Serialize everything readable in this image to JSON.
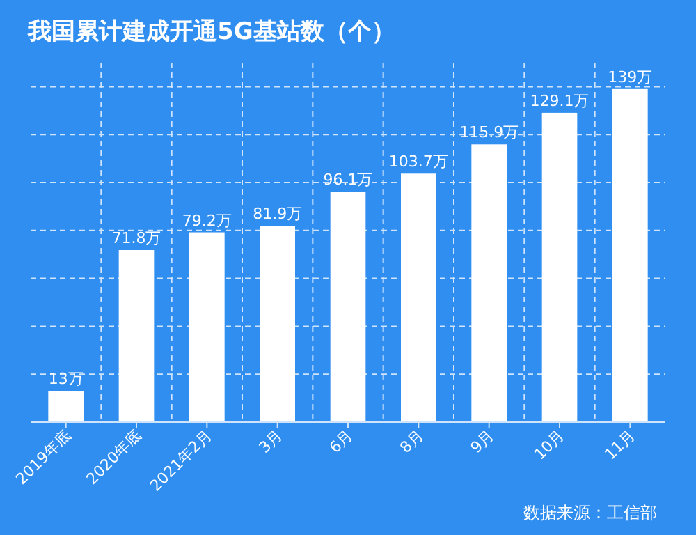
{
  "chart_data": {
    "type": "bar",
    "title": "我国累计建成开通5G基站数（个）",
    "categories": [
      "2019年底",
      "2020年底",
      "2021年2月",
      "3月",
      "6月",
      "8月",
      "9月",
      "10月",
      "11月"
    ],
    "values": [
      13,
      71.8,
      79.2,
      81.9,
      96.1,
      103.7,
      115.9,
      129.1,
      139
    ],
    "value_labels": [
      "13万",
      "71.8万",
      "79.2万",
      "81.9万",
      "96.1万",
      "103.7万",
      "115.9万",
      "129.1万",
      "139万"
    ],
    "color": "#ffffff",
    "ylim": [
      0,
      150
    ],
    "yticks": [
      {
        "value": 0,
        "label": null
      },
      {
        "value": 20,
        "label": null
      },
      {
        "value": 40,
        "label": null
      },
      {
        "value": 60,
        "label": null
      },
      {
        "value": 80,
        "label": null
      },
      {
        "value": 100,
        "label": null
      },
      {
        "value": 120,
        "label": null
      },
      {
        "value": 140,
        "label": null
      }
    ],
    "grid": true,
    "annotations": [
      "数据来源：工信部"
    ]
  }
}
